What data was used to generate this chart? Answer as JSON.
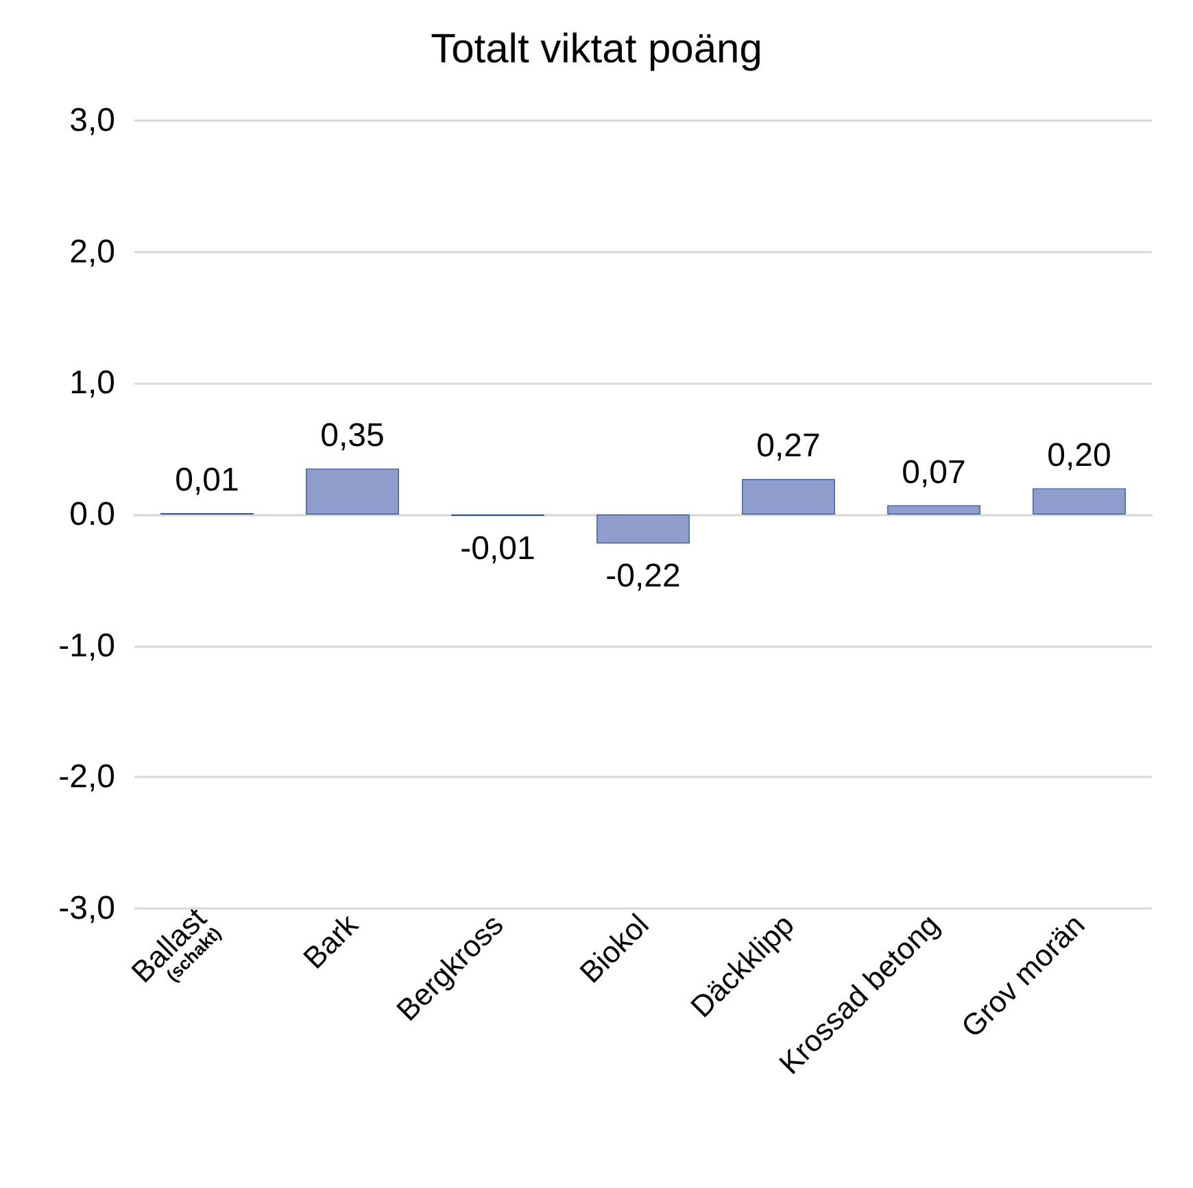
{
  "chart_data": {
    "type": "bar",
    "title": "Totalt viktat poäng",
    "categories": [
      "Ballast\n(schakt)",
      "Bark",
      "Bergkross",
      "Biokol",
      "Däckklipp",
      "Krossad betong",
      "Grov morän"
    ],
    "values": [
      0.01,
      0.35,
      -0.01,
      -0.22,
      0.27,
      0.07,
      0.2
    ],
    "value_labels": [
      "0,01",
      "0,35",
      "-0,01",
      "-0,22",
      "0,27",
      "0,07",
      "0,20"
    ],
    "color": "#8e9dcc",
    "ylim": [
      -3,
      3
    ],
    "yticks": [
      {
        "value": -3,
        "label": "-3,0"
      },
      {
        "value": -2,
        "label": "-2,0"
      },
      {
        "value": -1,
        "label": "-1,0"
      },
      {
        "value": 0,
        "label": "0.0"
      },
      {
        "value": 1,
        "label": "1,0"
      },
      {
        "value": 2,
        "label": "2,0"
      },
      {
        "value": 3,
        "label": "3,0"
      }
    ],
    "grid": "y"
  }
}
